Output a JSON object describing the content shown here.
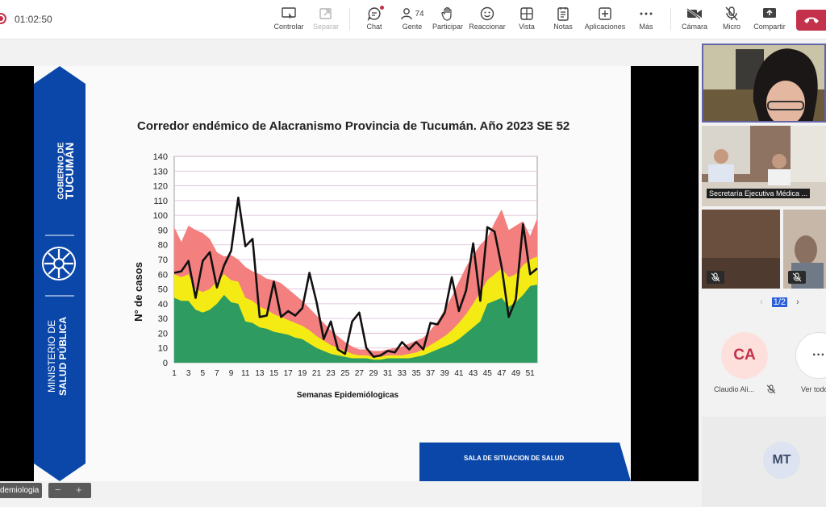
{
  "meeting": {
    "timer": "01:02:50",
    "toolbar": [
      {
        "id": "controlar",
        "label": "Controlar",
        "icon": "control-icon"
      },
      {
        "id": "separar",
        "label": "Separar",
        "icon": "popout-icon",
        "disabled": true
      },
      {
        "id": "chat",
        "label": "Chat",
        "icon": "chat-icon"
      },
      {
        "id": "gente",
        "label": "Gente",
        "icon": "people-icon",
        "count": "74"
      },
      {
        "id": "participar",
        "label": "Participar",
        "icon": "raise-hand-icon"
      },
      {
        "id": "reaccionar",
        "label": "Reaccionar",
        "icon": "smile-icon"
      },
      {
        "id": "vista",
        "label": "Vista",
        "icon": "grid-view-icon"
      },
      {
        "id": "notas",
        "label": "Notas",
        "icon": "notes-icon"
      },
      {
        "id": "aplicaciones",
        "label": "Aplicaciones",
        "icon": "add-apps-icon"
      },
      {
        "id": "mas",
        "label": "Más",
        "icon": "more-icon"
      },
      {
        "id": "camara",
        "label": "Cámara",
        "icon": "camera-off-icon"
      },
      {
        "id": "micro",
        "label": "Micro",
        "icon": "mic-off-icon"
      },
      {
        "id": "compartir",
        "label": "Compartir",
        "icon": "share-icon"
      }
    ],
    "colors": {
      "accent": "#6264a7",
      "leave": "#c4314b",
      "ribbon": "#0a47a9"
    }
  },
  "slide": {
    "ribbon": {
      "gobierno_line1": "GOBIERNO DE",
      "gobierno_line2": "TUCUMÁN",
      "ministerio_line1": "MINISTERIO DE",
      "ministerio_line2": "SALUD PÚBLICA"
    },
    "footer_label": "SALA DE SITUACION  DE SALUD"
  },
  "chart_data": {
    "type": "area",
    "title": "Corredor endémico de Alacranismo Provincia de Tucumán. Año 2023 SE 52",
    "xlabel": "Semanas Epidemiólogicas",
    "ylabel": "N° de casos",
    "ylim": [
      0,
      140
    ],
    "yticks": [
      0,
      10,
      20,
      30,
      40,
      50,
      60,
      70,
      80,
      90,
      100,
      110,
      120,
      130,
      140
    ],
    "xtick_labels": [
      "1",
      "3",
      "5",
      "7",
      "9",
      "11",
      "13",
      "15",
      "17",
      "19",
      "21",
      "23",
      "25",
      "27",
      "29",
      "31",
      "33",
      "35",
      "37",
      "39",
      "41",
      "43",
      "45",
      "47",
      "49",
      "51"
    ],
    "grid": true,
    "x": [
      1,
      2,
      3,
      4,
      5,
      6,
      7,
      8,
      9,
      10,
      11,
      12,
      13,
      14,
      15,
      16,
      17,
      18,
      19,
      20,
      21,
      22,
      23,
      24,
      25,
      26,
      27,
      28,
      29,
      30,
      31,
      32,
      33,
      34,
      35,
      36,
      37,
      38,
      39,
      40,
      41,
      42,
      43,
      44,
      45,
      46,
      47,
      48,
      49,
      50,
      51,
      52
    ],
    "series": [
      {
        "color": "#2e9c61",
        "values": [
          44,
          42,
          42,
          36,
          34,
          36,
          40,
          46,
          41,
          40,
          28,
          27,
          24,
          23,
          21,
          20,
          19,
          17,
          16,
          13,
          10,
          8,
          6,
          5,
          4,
          3,
          3,
          3,
          2,
          2,
          3,
          3,
          3,
          3,
          4,
          5,
          7,
          9,
          11,
          13,
          16,
          20,
          24,
          28,
          40,
          42,
          44,
          38,
          41,
          46,
          52,
          53
        ]
      },
      {
        "color": "#f5eb14",
        "values": [
          60,
          58,
          60,
          50,
          48,
          50,
          55,
          60,
          56,
          55,
          44,
          42,
          38,
          36,
          33,
          31,
          29,
          27,
          25,
          22,
          18,
          15,
          12,
          10,
          8,
          6,
          5,
          5,
          4,
          4,
          5,
          5,
          5,
          6,
          7,
          9,
          12,
          15,
          18,
          22,
          27,
          33,
          40,
          48,
          56,
          60,
          64,
          58,
          60,
          66,
          70,
          72
        ]
      },
      {
        "color": "#f47f7f",
        "values": [
          92,
          82,
          93,
          90,
          88,
          84,
          75,
          72,
          73,
          70,
          65,
          62,
          60,
          57,
          56,
          54,
          50,
          46,
          42,
          37,
          32,
          27,
          22,
          18,
          14,
          11,
          9,
          9,
          8,
          8,
          9,
          10,
          11,
          13,
          15,
          17,
          22,
          28,
          36,
          45,
          55,
          65,
          73,
          80,
          85,
          95,
          104,
          90,
          93,
          96,
          86,
          98
        ]
      },
      {
        "color": "#111111",
        "values": [
          61,
          62,
          69,
          44,
          69,
          75,
          51,
          66,
          76,
          112,
          79,
          84,
          31,
          32,
          55,
          31,
          35,
          32,
          37,
          61,
          41,
          16,
          28,
          9,
          6,
          28,
          34,
          10,
          4,
          5,
          8,
          7,
          14,
          9,
          14,
          9,
          27,
          26,
          34,
          58,
          35,
          49,
          81,
          42,
          92,
          89,
          65,
          31,
          43,
          94,
          60,
          64
        ]
      }
    ]
  },
  "bottom": {
    "tab_label": "demiologia",
    "zoom_out": "−",
    "zoom_in": "+"
  },
  "participants": {
    "tile2_caption": "Secretaría Ejecutiva Médica ...",
    "pager": "1/2",
    "people": [
      {
        "initials": "CA",
        "name": "Claudio Ali...",
        "bg": "#fde0dc",
        "fg": "#c4314b"
      },
      {
        "initials": "MT",
        "name": "",
        "bg": "#dde3f0",
        "fg": "#3b4a6b"
      }
    ],
    "ver_todo": "Ver todo",
    "more_glyph": "···"
  }
}
